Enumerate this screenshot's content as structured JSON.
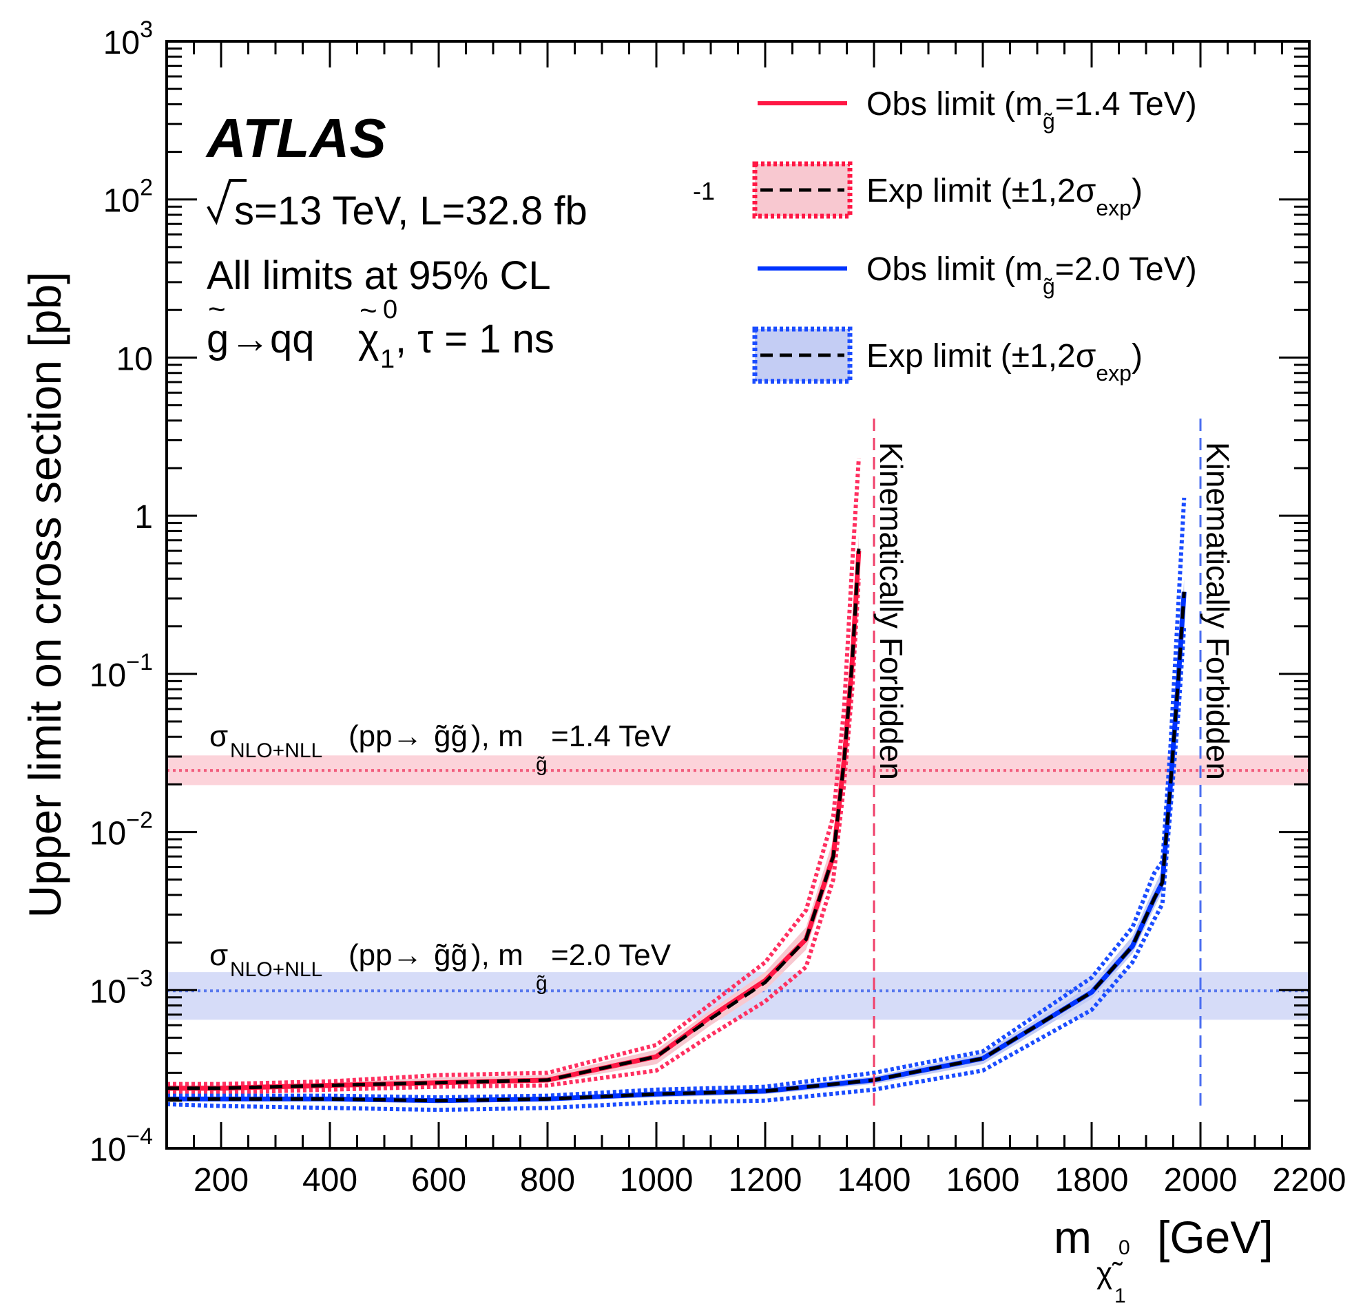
{
  "chart_data": {
    "type": "line",
    "ylabel": "Upper limit on cross section [pb]",
    "xlabel_main": "m",
    "xlabel_sub": "χ̃",
    "xlabel_sub_sup": "0",
    "xlabel_sub_sub": "1",
    "xlabel_unit": "[GeV]",
    "x_range": [
      100,
      2200
    ],
    "y_range": [
      0.0001,
      1000
    ],
    "y_scale": "log",
    "x_ticks": [
      "200",
      "400",
      "600",
      "800",
      "1000",
      "1200",
      "1400",
      "1600",
      "1800",
      "2000",
      "2200"
    ],
    "x_tick_values": [
      200,
      400,
      600,
      800,
      1000,
      1200,
      1400,
      1600,
      1800,
      2000,
      2200
    ],
    "y_ticks": [
      {
        "value": 0.0001,
        "base": "10",
        "exp": "−4"
      },
      {
        "value": 0.001,
        "base": "10",
        "exp": "−3"
      },
      {
        "value": 0.01,
        "base": "10",
        "exp": "−2"
      },
      {
        "value": 0.1,
        "base": "10",
        "exp": "−1"
      },
      {
        "value": 1,
        "base": "1",
        "exp": ""
      },
      {
        "value": 10,
        "base": "10",
        "exp": ""
      },
      {
        "value": 100,
        "base": "10",
        "exp": "2"
      },
      {
        "value": 1000,
        "base": "10",
        "exp": "3"
      }
    ],
    "grid": false,
    "legend_position": "top-right",
    "annotations": {
      "atlas": "ATLAS",
      "energy": "s=13 TeV, L=32.8 fb",
      "energy_sup": "-1",
      "cl": "All limits at 95% CL",
      "process_a": "g",
      "process_b": "→qq",
      "process_c": "χ",
      "process_sup": "0",
      "process_sub": "1",
      "process_d": ", τ = 1 ns",
      "kinematic_red": "Kinematically Forbidden",
      "kinematic_blue": "Kinematically Forbidden",
      "xsec_red": "σ",
      "xsec_red_sub": "NLO+NLL",
      "xsec_red_mid": "(pp→",
      "xsec_red_g": "g̃g̃",
      "xsec_red_end": "), m",
      "xsec_red_msub": "g̃",
      "xsec_red_val": "=1.4 TeV",
      "xsec_blue": "σ",
      "xsec_blue_sub": "NLO+NLL",
      "xsec_blue_mid": "(pp→",
      "xsec_blue_g": "g̃g̃",
      "xsec_blue_end": "), m",
      "xsec_blue_msub": "g̃",
      "xsec_blue_val": "=2.0 TeV"
    },
    "legend": [
      {
        "text": "Obs limit (m",
        "sub": "g̃",
        "tail": "=1.4 TeV)",
        "style": "solid",
        "color": "#ff1744"
      },
      {
        "text": "Exp limit (±1,2σ",
        "sub": "exp",
        "tail": ")",
        "style": "band",
        "color": "#ff1744"
      },
      {
        "text": "Obs limit (m",
        "sub": "g̃",
        "tail": "=2.0 TeV)",
        "style": "solid",
        "color": "#0033ff"
      },
      {
        "text": "Exp limit (±1,2σ",
        "sub": "exp",
        "tail": ")",
        "style": "band",
        "color": "#1a4cff"
      }
    ],
    "colors": {
      "red": "#ff1744",
      "red_band": "#f8c8d0",
      "red_dot": "#ff3060",
      "blue": "#0033ff",
      "blue_band": "#c4cdf4",
      "blue_dot": "#1a4cff",
      "forbid_red": "#f0406a",
      "forbid_blue": "#4a6df0",
      "xsec_red_band": "#fcd3da",
      "xsec_red_line": "#f25c7c",
      "xsec_blue_band": "#d6dcf8",
      "xsec_blue_line": "#5878ee"
    },
    "xsec_lines": [
      {
        "name": "m_g=1.4 TeV",
        "value": 0.0245,
        "low": 0.0198,
        "high": 0.0305
      },
      {
        "name": "m_g=2.0 TeV",
        "value": 0.00099,
        "low": 0.00065,
        "high": 0.0013
      }
    ],
    "forbidden_x": [
      1400,
      2000
    ],
    "series": [
      {
        "name": "Obs limit (m_g=1.4 TeV)",
        "x": [
          100,
          200,
          400,
          600,
          800,
          1000,
          1100,
          1200,
          1275,
          1325,
          1345,
          1360,
          1372
        ],
        "obs": [
          0.00024,
          0.00024,
          0.00025,
          0.00026,
          0.00027,
          0.00038,
          0.00068,
          0.00115,
          0.0021,
          0.007,
          0.028,
          0.12,
          0.6
        ],
        "exp": [
          0.00024,
          0.00024,
          0.00025,
          0.00026,
          0.00027,
          0.00038,
          0.00066,
          0.00112,
          0.0021,
          0.007,
          0.028,
          0.12,
          0.62
        ],
        "s1_up": [
          0.00025,
          0.00025,
          0.00026,
          0.00028,
          0.00029,
          0.00042,
          0.00075,
          0.0013,
          0.0025,
          0.009,
          0.035,
          0.16,
          0.75
        ],
        "s1_dn": [
          0.00023,
          0.00023,
          0.00024,
          0.00025,
          0.00026,
          0.00034,
          0.0006,
          0.001,
          0.0018,
          0.006,
          0.024,
          0.1,
          0.5
        ],
        "s2_up": [
          0.000255,
          0.000255,
          0.000265,
          0.00029,
          0.0003,
          0.00045,
          0.00082,
          0.0015,
          0.0032,
          0.0125,
          0.06,
          0.5,
          2.3
        ],
        "s2_dn": [
          0.000225,
          0.000225,
          0.000235,
          0.000245,
          0.00025,
          0.00031,
          0.00052,
          0.00085,
          0.0014,
          0.005,
          0.02,
          0.08,
          0.4
        ]
      },
      {
        "name": "Obs limit (m_g=2.0 TeV)",
        "x": [
          100,
          200,
          400,
          600,
          800,
          1000,
          1200,
          1400,
          1600,
          1800,
          1875,
          1915,
          1930,
          1945,
          1960,
          1970
        ],
        "obs": [
          0.000205,
          0.000205,
          0.000205,
          0.0002,
          0.000205,
          0.00022,
          0.00023,
          0.00027,
          0.00037,
          0.00097,
          0.0019,
          0.0038,
          0.0048,
          0.02,
          0.1,
          0.33
        ],
        "exp": [
          0.000205,
          0.000205,
          0.000205,
          0.0002,
          0.000205,
          0.00022,
          0.00023,
          0.00027,
          0.00037,
          0.00097,
          0.0019,
          0.0038,
          0.0048,
          0.02,
          0.1,
          0.33
        ],
        "s1_up": [
          0.00021,
          0.00021,
          0.00021,
          0.000205,
          0.00021,
          0.00023,
          0.00024,
          0.000285,
          0.0004,
          0.00108,
          0.0022,
          0.0045,
          0.0058,
          0.025,
          0.13,
          0.4
        ],
        "s1_dn": [
          0.0002,
          0.0002,
          0.0002,
          0.000195,
          0.0002,
          0.00021,
          0.00022,
          0.000255,
          0.00034,
          0.00088,
          0.0017,
          0.0033,
          0.0042,
          0.017,
          0.085,
          0.28
        ],
        "s2_up": [
          0.000215,
          0.000215,
          0.000215,
          0.00021,
          0.000215,
          0.000235,
          0.000245,
          0.0003,
          0.00041,
          0.0012,
          0.0025,
          0.0055,
          0.0065,
          0.035,
          0.3,
          1.3
        ],
        "s2_dn": [
          0.00019,
          0.000185,
          0.00018,
          0.000175,
          0.00018,
          0.000195,
          0.0002,
          0.000235,
          0.00031,
          0.00075,
          0.0015,
          0.0028,
          0.0035,
          0.014,
          0.06,
          0.2
        ]
      }
    ]
  }
}
